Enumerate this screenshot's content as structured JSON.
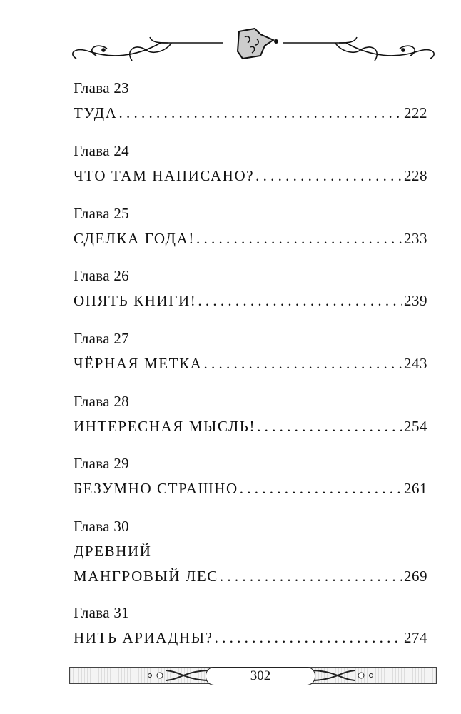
{
  "header": {
    "ornament": "decorative-scroll-with-lock-icon"
  },
  "entries": [
    {
      "label": "Глава 23",
      "title": "ТУДА",
      "page": "222"
    },
    {
      "label": "Глава 24",
      "title": "ЧТО ТАМ НАПИСАНО?",
      "page": "228"
    },
    {
      "label": "Глава 25",
      "title": "СДЕЛКА ГОДА!",
      "page": "233"
    },
    {
      "label": "Глава 26",
      "title": "ОПЯТЬ КНИГИ!",
      "page": "239"
    },
    {
      "label": "Глава 27",
      "title": "ЧЁРНАЯ МЕТКА",
      "page": "243"
    },
    {
      "label": "Глава 28",
      "title": "ИНТЕРЕСНАЯ МЫСЛЬ!",
      "page": "254"
    },
    {
      "label": "Глава 29",
      "title": "БЕЗУМНО СТРАШНО",
      "page": "261"
    },
    {
      "label": "Глава 30",
      "title_line1": "ДРЕВНИЙ",
      "title": "МАНГРОВЫЙ ЛЕС",
      "page": "269"
    },
    {
      "label": "Глава 31",
      "title": "НИТЬ АРИАДНЫ?",
      "page": "274"
    }
  ],
  "footer": {
    "page_number": "302"
  }
}
